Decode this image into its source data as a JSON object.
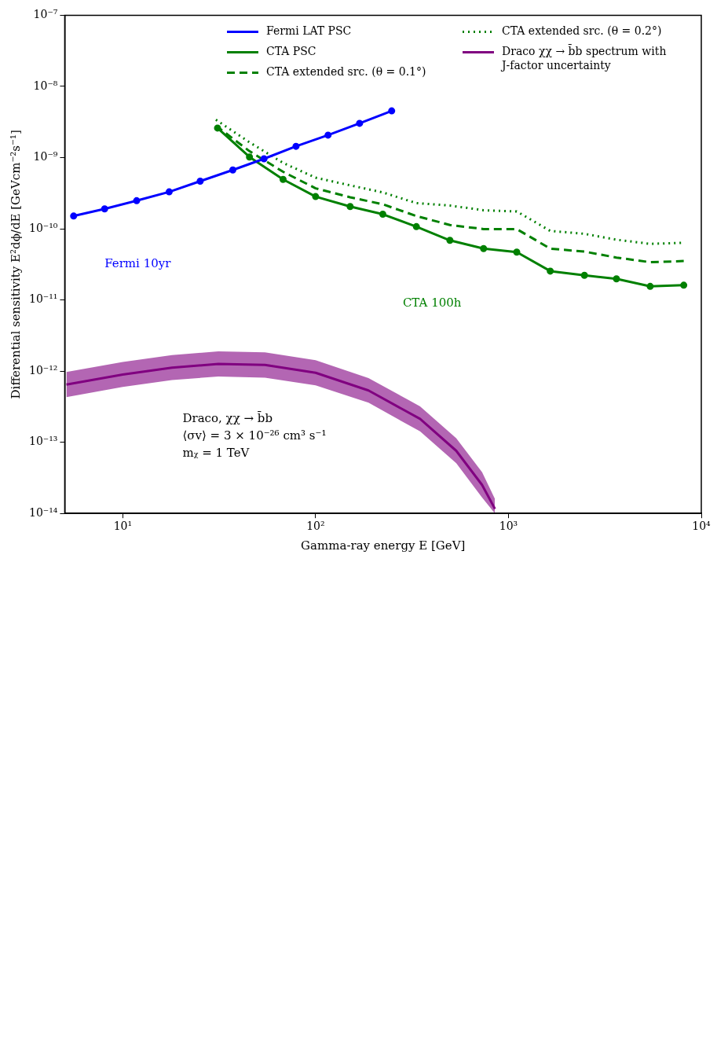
{
  "chart_data": {
    "type": "line",
    "xlabel": "Gamma-ray energy E [GeV]",
    "ylabel": "Differential sensitivity E²dϕ/dE [GeVcm⁻²s⁻¹]",
    "log": "xy",
    "xlim": [
      5,
      10000
    ],
    "xticks": [
      {
        "value": 10,
        "label": "10¹"
      },
      {
        "value": 100,
        "label": "10²"
      },
      {
        "value": 1000,
        "label": "10³"
      },
      {
        "value": 10000,
        "label": "10⁴"
      }
    ],
    "ylim": [
      1e-14,
      1e-07
    ],
    "yticks": [
      {
        "value": 1e-14,
        "label": "10⁻¹⁴"
      },
      {
        "value": 1e-13,
        "label": "10⁻¹³"
      },
      {
        "value": 1e-12,
        "label": "10⁻¹²"
      },
      {
        "value": 1e-11,
        "label": "10⁻¹¹"
      },
      {
        "value": 1e-10,
        "label": "10⁻¹⁰"
      },
      {
        "value": 1e-09,
        "label": "10⁻⁹"
      },
      {
        "value": 1e-08,
        "label": "10⁻⁸"
      },
      {
        "value": 1e-07,
        "label": "10⁻⁷"
      }
    ],
    "grid": false,
    "legend": "top right",
    "series": [
      {
        "name": "Fermi LAT PSC",
        "color": "#0000ff",
        "marker": "circle",
        "line_style": "solid",
        "x": [
          5.56,
          8.05,
          11.8,
          17.4,
          25.2,
          37.2,
          54.0,
          79.1,
          116,
          169,
          248
        ],
        "values": [
          1.51e-10,
          1.9e-10,
          2.48e-10,
          3.3e-10,
          4.66e-10,
          6.7e-10,
          9.62e-10,
          1.44e-09,
          2.07e-09,
          3.03e-09,
          4.53e-09
        ]
      },
      {
        "name": "CTA PSC",
        "color": "#008000",
        "marker": "circle",
        "line_style": "solid",
        "x": [
          31.0,
          45.4,
          67.8,
          100,
          151,
          223,
          333,
          497,
          743,
          1104,
          1648,
          2477,
          3631,
          5431,
          8110
        ],
        "values": [
          2.6e-09,
          1.02e-09,
          4.93e-10,
          2.83e-10,
          2.05e-10,
          1.6e-10,
          1.07e-10,
          6.87e-11,
          5.26e-11,
          4.69e-11,
          2.54e-11,
          2.22e-11,
          1.98e-11,
          1.55e-11,
          1.61e-11
        ]
      },
      {
        "name": "CTA extended src. (θ = 0.1°)",
        "color": "#008000",
        "marker": "none",
        "line_style": "dashed",
        "x": [
          30.4,
          45.4,
          67.8,
          100,
          151,
          223,
          333,
          497,
          743,
          1104,
          1648,
          2477,
          3631,
          5431,
          8110
        ],
        "values": [
          2.81e-09,
          1.23e-09,
          6.32e-10,
          3.7e-10,
          2.77e-10,
          2.21e-10,
          1.51e-10,
          1.13e-10,
          9.9e-11,
          9.9e-11,
          5.26e-11,
          4.78e-11,
          3.94e-11,
          3.39e-11,
          3.52e-11
        ]
      },
      {
        "name": "CTA extended src. (θ = 0.2°)",
        "color": "#008000",
        "marker": "none",
        "line_style": "dotted",
        "x": [
          30.4,
          45.4,
          67.8,
          100,
          151,
          223,
          333,
          497,
          743,
          1104,
          1648,
          2477,
          3631,
          5431,
          8110
        ],
        "values": [
          3.4e-09,
          1.64e-09,
          8.42e-10,
          5.22e-10,
          4.07e-10,
          3.24e-10,
          2.29e-10,
          2.12e-10,
          1.82e-10,
          1.75e-10,
          9.33e-11,
          8.49e-11,
          7.02e-11,
          6.13e-11,
          6.37e-11
        ]
      },
      {
        "name": "Draco χχ → b̄b spectrum with J-factor uncertainty",
        "color": "#800080",
        "marker": "none",
        "line_style": "solid",
        "x": [
          5.1,
          10,
          18.0,
          31.3,
          54.6,
          100,
          188,
          348,
          536,
          730,
          851
        ],
        "values": [
          6.47e-13,
          8.95e-13,
          1.12e-12,
          1.26e-12,
          1.22e-12,
          9.48e-13,
          5.35e-13,
          2.13e-13,
          7.59e-14,
          2.51e-14,
          1.16e-14
        ],
        "lower": [
          4.3e-13,
          6e-13,
          7.5e-13,
          8.4e-13,
          8.1e-13,
          6.3e-13,
          3.6e-13,
          1.42e-13,
          5.1e-14,
          1.67e-14,
          1e-14
        ],
        "upper": [
          9.7e-13,
          1.34e-12,
          1.68e-12,
          1.89e-12,
          1.83e-12,
          1.42e-12,
          8e-13,
          3.2e-13,
          1.14e-13,
          3.8e-14,
          1.6e-14
        ]
      }
    ],
    "annotations": [
      "Fermi 10yr",
      "CTA 100h",
      "Draco, χχ → b̄b",
      "⟨σv⟩ = 3 × 10⁻²⁶ cm³ s⁻¹",
      "mᵪ = 1 TeV"
    ]
  }
}
